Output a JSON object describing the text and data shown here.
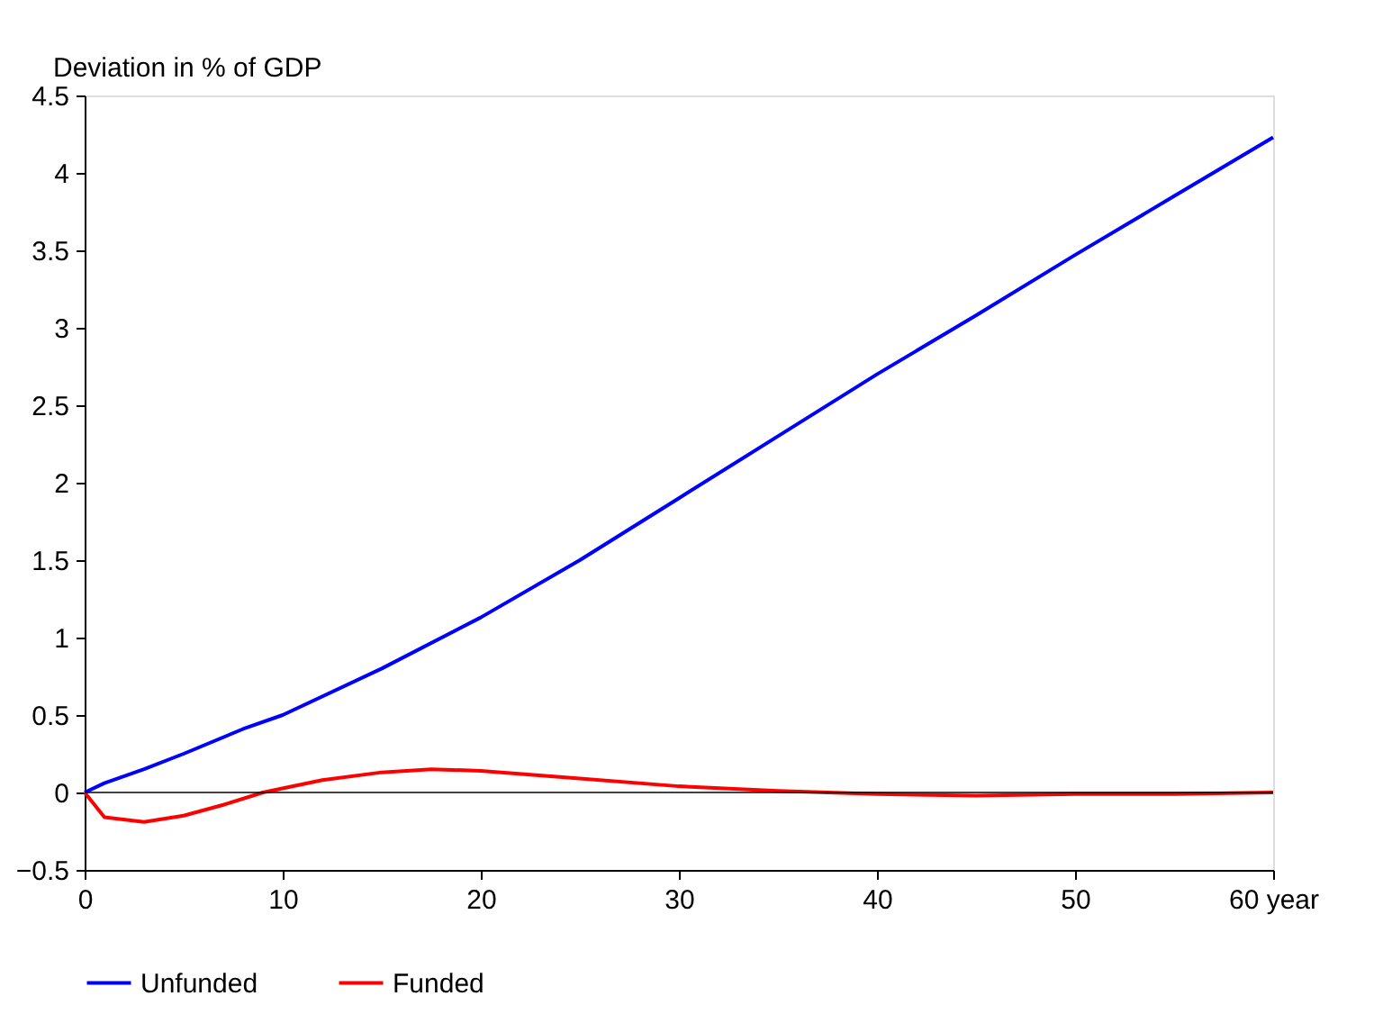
{
  "chart_data": {
    "type": "line",
    "ylabel": "Deviation in % of GDP",
    "x": [
      0,
      1,
      3,
      5,
      8,
      10,
      15,
      20,
      25,
      30,
      35,
      40,
      45,
      50,
      55,
      60
    ],
    "series": [
      {
        "name": "Unfunded",
        "color": "#0000ff",
        "values": [
          0,
          0.06,
          0.15,
          0.25,
          0.41,
          0.5,
          0.8,
          1.13,
          1.5,
          1.9,
          2.3,
          2.7,
          3.08,
          3.47,
          3.85,
          4.23
        ]
      },
      {
        "name": "Funded",
        "color": "#ff0000",
        "x": [
          0,
          1,
          3,
          5,
          7,
          9,
          12,
          15,
          17.5,
          20,
          25,
          30,
          35,
          40,
          45,
          50,
          55,
          60
        ],
        "values": [
          0,
          -0.16,
          -0.19,
          -0.15,
          -0.08,
          0,
          0.08,
          0.13,
          0.15,
          0.14,
          0.09,
          0.04,
          0.01,
          -0.01,
          -0.02,
          -0.01,
          -0.01,
          0
        ]
      }
    ],
    "xlim": [
      0,
      60
    ],
    "xticks": [
      0,
      10,
      20,
      30,
      40,
      50,
      {
        "value": 60,
        "label": "60 year"
      }
    ],
    "ylim": [
      -0.5,
      4.5
    ],
    "yticks": [
      -0.5,
      0,
      0.5,
      1,
      1.5,
      2,
      2.5,
      3,
      3.5,
      4,
      4.5
    ],
    "ref_lines": [
      {
        "axis": "y",
        "value": 0,
        "color": "#000000"
      }
    ],
    "grid": false,
    "legend": "bottom",
    "line_style": "solid",
    "marker": "none"
  }
}
